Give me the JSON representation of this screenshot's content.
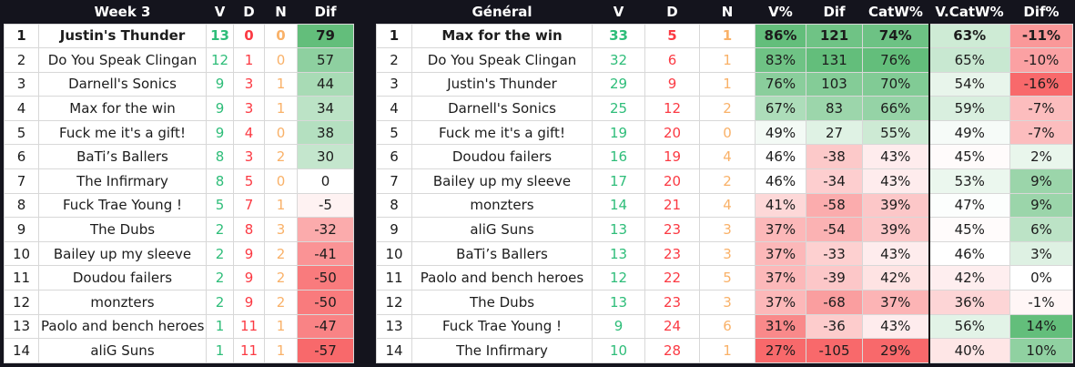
{
  "palette": {
    "frame_bg": "#14141d",
    "header_bg": "#14141d",
    "header_text": "#ffffff",
    "grid_line": "#d8d8d8",
    "cell_bg": "#ffffff",
    "text": "#1c1c1c",
    "win_green": "#2ebd79",
    "loss_red": "#fb3a43",
    "draw_orange": "#f9b168",
    "scale_green": "#63be7b",
    "scale_red": "#f8696b",
    "scale_white": "#ffffff",
    "divider_black": "#161616"
  },
  "left": {
    "title": "Week 3",
    "columns": {
      "v": "V",
      "d": "D",
      "n": "N",
      "dif": "Dif"
    },
    "scales": {
      "dif": {
        "min": -57,
        "mid": 0,
        "max": 79
      }
    },
    "rows": [
      {
        "rank": "1",
        "team": "Justin's Thunder",
        "v": "13",
        "d": "0",
        "n": "0",
        "dif": "79",
        "bold": true
      },
      {
        "rank": "2",
        "team": "Do You Speak Clingan",
        "v": "12",
        "d": "1",
        "n": "0",
        "dif": "57",
        "bold": false
      },
      {
        "rank": "3",
        "team": "Darnell's Sonics",
        "v": "9",
        "d": "3",
        "n": "1",
        "dif": "44",
        "bold": false
      },
      {
        "rank": "4",
        "team": "Max for the win",
        "v": "9",
        "d": "3",
        "n": "1",
        "dif": "34",
        "bold": false
      },
      {
        "rank": "5",
        "team": "Fuck me it's a gift!",
        "v": "9",
        "d": "4",
        "n": "0",
        "dif": "38",
        "bold": false
      },
      {
        "rank": "6",
        "team": "BaTi’s Ballers",
        "v": "8",
        "d": "3",
        "n": "2",
        "dif": "30",
        "bold": false
      },
      {
        "rank": "7",
        "team": "The Infirmary",
        "v": "8",
        "d": "5",
        "n": "0",
        "dif": "0",
        "bold": false
      },
      {
        "rank": "8",
        "team": "Fuck Trae Young !",
        "v": "5",
        "d": "7",
        "n": "1",
        "dif": "-5",
        "bold": false
      },
      {
        "rank": "9",
        "team": "The Dubs",
        "v": "2",
        "d": "8",
        "n": "3",
        "dif": "-32",
        "bold": false
      },
      {
        "rank": "10",
        "team": "Bailey up my sleeve",
        "v": "2",
        "d": "9",
        "n": "2",
        "dif": "-41",
        "bold": false
      },
      {
        "rank": "11",
        "team": "Doudou failers",
        "v": "2",
        "d": "9",
        "n": "2",
        "dif": "-50",
        "bold": false
      },
      {
        "rank": "12",
        "team": "monzters",
        "v": "2",
        "d": "9",
        "n": "2",
        "dif": "-50",
        "bold": false
      },
      {
        "rank": "13",
        "team": "Paolo and bench heroes",
        "v": "1",
        "d": "11",
        "n": "1",
        "dif": "-47",
        "bold": false
      },
      {
        "rank": "14",
        "team": "aliG Suns",
        "v": "1",
        "d": "11",
        "n": "1",
        "dif": "-57",
        "bold": false
      }
    ]
  },
  "right": {
    "title": "Général",
    "columns": {
      "v": "V",
      "d": "D",
      "n": "N",
      "vp": "V%",
      "dif": "Dif",
      "catw": "CatW%",
      "vcatw": "V.CatW%",
      "difp": "Dif%"
    },
    "scales": {
      "vp": {
        "min": 27,
        "mid": 46,
        "max": 86
      },
      "dif": {
        "min": -105,
        "mid": 0,
        "max": 131
      },
      "catw": {
        "min": 29,
        "mid": 45,
        "max": 76
      },
      "vcatw": {
        "min": 10,
        "mid": 46,
        "max": 100
      },
      "difp": {
        "min": -16,
        "mid": 0,
        "max": 14
      }
    },
    "rows": [
      {
        "rank": "1",
        "team": "Max for the win",
        "v": "33",
        "d": "5",
        "n": "1",
        "vp": "86%",
        "dif": "121",
        "catw": "74%",
        "vcatw": "63%",
        "difp": "-11%",
        "bold": true
      },
      {
        "rank": "2",
        "team": "Do You Speak Clingan",
        "v": "32",
        "d": "6",
        "n": "1",
        "vp": "83%",
        "dif": "131",
        "catw": "76%",
        "vcatw": "65%",
        "difp": "-10%",
        "bold": false
      },
      {
        "rank": "3",
        "team": "Justin's Thunder",
        "v": "29",
        "d": "9",
        "n": "1",
        "vp": "76%",
        "dif": "103",
        "catw": "70%",
        "vcatw": "54%",
        "difp": "-16%",
        "bold": false
      },
      {
        "rank": "4",
        "team": "Darnell's Sonics",
        "v": "25",
        "d": "12",
        "n": "2",
        "vp": "67%",
        "dif": "83",
        "catw": "66%",
        "vcatw": "59%",
        "difp": "-7%",
        "bold": false
      },
      {
        "rank": "5",
        "team": "Fuck me it's a gift!",
        "v": "19",
        "d": "20",
        "n": "0",
        "vp": "49%",
        "dif": "27",
        "catw": "55%",
        "vcatw": "49%",
        "difp": "-7%",
        "bold": false
      },
      {
        "rank": "6",
        "team": "Doudou failers",
        "v": "16",
        "d": "19",
        "n": "4",
        "vp": "46%",
        "dif": "-38",
        "catw": "43%",
        "vcatw": "45%",
        "difp": "2%",
        "bold": false
      },
      {
        "rank": "7",
        "team": "Bailey up my sleeve",
        "v": "17",
        "d": "20",
        "n": "2",
        "vp": "46%",
        "dif": "-34",
        "catw": "43%",
        "vcatw": "53%",
        "difp": "9%",
        "bold": false
      },
      {
        "rank": "8",
        "team": "monzters",
        "v": "14",
        "d": "21",
        "n": "4",
        "vp": "41%",
        "dif": "-58",
        "catw": "39%",
        "vcatw": "47%",
        "difp": "9%",
        "bold": false
      },
      {
        "rank": "9",
        "team": "aliG Suns",
        "v": "13",
        "d": "23",
        "n": "3",
        "vp": "37%",
        "dif": "-54",
        "catw": "39%",
        "vcatw": "45%",
        "difp": "6%",
        "bold": false
      },
      {
        "rank": "10",
        "team": "BaTi’s Ballers",
        "v": "13",
        "d": "23",
        "n": "3",
        "vp": "37%",
        "dif": "-33",
        "catw": "43%",
        "vcatw": "46%",
        "difp": "3%",
        "bold": false
      },
      {
        "rank": "11",
        "team": "Paolo and bench heroes",
        "v": "12",
        "d": "22",
        "n": "5",
        "vp": "37%",
        "dif": "-39",
        "catw": "42%",
        "vcatw": "42%",
        "difp": "0%",
        "bold": false
      },
      {
        "rank": "12",
        "team": "The Dubs",
        "v": "13",
        "d": "23",
        "n": "3",
        "vp": "37%",
        "dif": "-68",
        "catw": "37%",
        "vcatw": "36%",
        "difp": "-1%",
        "bold": false
      },
      {
        "rank": "13",
        "team": "Fuck Trae Young !",
        "v": "9",
        "d": "24",
        "n": "6",
        "vp": "31%",
        "dif": "-36",
        "catw": "43%",
        "vcatw": "56%",
        "difp": "14%",
        "bold": false
      },
      {
        "rank": "14",
        "team": "The Infirmary",
        "v": "10",
        "d": "28",
        "n": "1",
        "vp": "27%",
        "dif": "-105",
        "catw": "29%",
        "vcatw": "40%",
        "difp": "10%",
        "bold": false
      }
    ]
  }
}
